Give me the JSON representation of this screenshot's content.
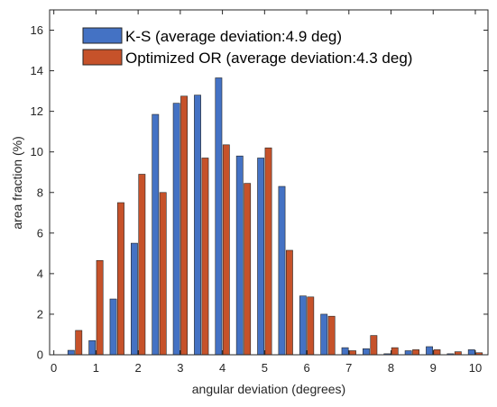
{
  "chart_data": {
    "type": "bar",
    "xlabel": "angular deviation (degrees)",
    "ylabel": "area fraction (%)",
    "xlim": [
      -0.1,
      10.3
    ],
    "ylim": [
      0,
      17
    ],
    "xticks": [
      0,
      1,
      2,
      3,
      4,
      5,
      6,
      7,
      8,
      9,
      10
    ],
    "yticks": [
      0,
      2,
      4,
      6,
      8,
      10,
      12,
      14,
      16
    ],
    "grid": false,
    "legend_position": "top-left",
    "x": [
      0.5,
      1.0,
      1.5,
      2.0,
      2.5,
      3.0,
      3.5,
      4.0,
      4.5,
      5.0,
      5.5,
      6.0,
      6.5,
      7.0,
      7.5,
      8.0,
      8.5,
      9.0,
      9.5,
      10.0
    ],
    "series": [
      {
        "name": "K-S (average deviation:4.9 deg)",
        "color": "#4472c4",
        "values": [
          0.22,
          0.7,
          2.75,
          5.5,
          11.85,
          12.4,
          12.8,
          13.65,
          9.8,
          9.7,
          8.3,
          2.9,
          2.0,
          0.35,
          0.3,
          0.05,
          0.2,
          0.4,
          0.05,
          0.25
        ]
      },
      {
        "name": "Optimized OR (average deviation:4.3 deg)",
        "color": "#c6522a",
        "values": [
          1.2,
          4.65,
          7.5,
          8.9,
          8.0,
          12.75,
          9.7,
          10.35,
          8.45,
          10.2,
          5.15,
          2.85,
          1.9,
          0.2,
          0.95,
          0.35,
          0.25,
          0.25,
          0.15,
          0.1
        ]
      }
    ]
  }
}
